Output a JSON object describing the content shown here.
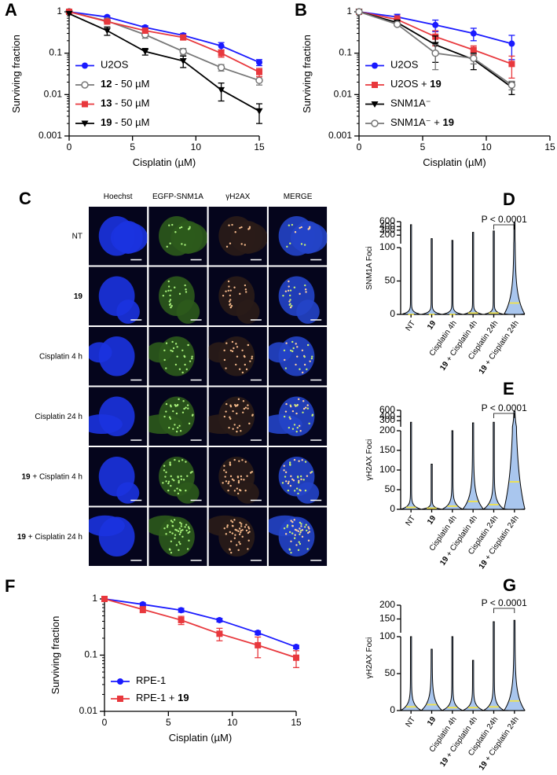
{
  "chart_data": [
    {
      "label": "A",
      "type": "line",
      "xlabel": "Cisplatin (µM)",
      "ylabel": "Surviving fraction",
      "x": [
        0,
        3,
        6,
        9,
        12,
        15
      ],
      "xlim": [
        0,
        15
      ],
      "xticks": [
        0,
        5,
        10,
        15
      ],
      "ylim": [
        0.001,
        1
      ],
      "yticks": [
        0.001,
        0.01,
        0.1,
        1
      ],
      "yscale": "log",
      "legend": "lower left",
      "series": [
        {
          "name": "U2OS",
          "color": "#1a1aff",
          "marker": "circle",
          "values": [
            1,
            0.75,
            0.42,
            0.27,
            0.15,
            0.06
          ],
          "errors": [
            0,
            0.05,
            0.04,
            0.03,
            0.03,
            0.01
          ]
        },
        {
          "name": "12 - 50 µM",
          "color": "#777777",
          "marker": "open-circle",
          "values": [
            1,
            0.6,
            0.28,
            0.11,
            0.045,
            0.022
          ],
          "errors": [
            0,
            0.05,
            0.05,
            0.02,
            0.008,
            0.005
          ]
        },
        {
          "name": "13 - 50 µM",
          "color": "#e8383d",
          "marker": "square",
          "values": [
            1,
            0.58,
            0.35,
            0.24,
            0.1,
            0.035
          ],
          "errors": [
            0,
            0.05,
            0.04,
            0.03,
            0.02,
            0.008
          ]
        },
        {
          "name": "19 - 50 µM",
          "color": "#000000",
          "marker": "triangle-down",
          "values": [
            0.9,
            0.35,
            0.11,
            0.065,
            0.013,
            0.004
          ],
          "errors": [
            0,
            0.08,
            0.02,
            0.02,
            0.006,
            0.002
          ]
        }
      ]
    },
    {
      "label": "B",
      "type": "line",
      "xlabel": "Cisplatin (µM)",
      "ylabel": "Surviving fraction",
      "x": [
        0,
        3,
        6,
        9,
        12
      ],
      "xlim": [
        0,
        15
      ],
      "xticks": [
        0,
        5,
        10,
        15
      ],
      "ylim": [
        0.001,
        1
      ],
      "yticks": [
        0.001,
        0.01,
        0.1,
        1
      ],
      "yscale": "log",
      "legend": "lower left",
      "series": [
        {
          "name": "U2OS",
          "color": "#1a1aff",
          "marker": "circle",
          "values": [
            1,
            0.75,
            0.48,
            0.3,
            0.17
          ],
          "errors": [
            0,
            0.12,
            0.15,
            0.1,
            0.1
          ]
        },
        {
          "name": "U2OS + 19",
          "color": "#e8383d",
          "marker": "square",
          "values": [
            1,
            0.65,
            0.25,
            0.12,
            0.055
          ],
          "errors": [
            0,
            0.15,
            0.1,
            0.03,
            0.03
          ]
        },
        {
          "name": "SNM1A⁻",
          "color": "#000000",
          "marker": "triangle-down",
          "values": [
            1,
            0.55,
            0.16,
            0.07,
            0.015
          ],
          "errors": [
            0,
            0.08,
            0.1,
            0.03,
            0.005
          ]
        },
        {
          "name": "SNM1A⁻ + 19",
          "color": "#777777",
          "marker": "open-circle",
          "values": [
            1,
            0.5,
            0.1,
            0.075,
            0.017
          ],
          "errors": [
            0,
            0.05,
            0.06,
            0.02,
            0.004
          ]
        }
      ]
    },
    {
      "label": "C",
      "type": "image",
      "columns": [
        "Hoechst",
        "EGFP-SNM1A",
        "γH2AX",
        "MERGE"
      ],
      "rows": [
        "NT",
        "19",
        "Cisplatin 4 h",
        "Cisplatin 24 h",
        "19 + Cisplatin 4 h",
        "19 + Cisplatin 24 h"
      ]
    },
    {
      "label": "D",
      "type": "violin",
      "ylabel": "SNM1A Foci",
      "categories": [
        "NT",
        "19",
        "Cisplatin 4h",
        "19 + Cisplatin 4h",
        "Cisplatin 24h",
        "19 + Cisplatin 24h"
      ],
      "medians": [
        0,
        0,
        0,
        2,
        2,
        17
      ],
      "maxima": [
        470,
        150,
        130,
        250,
        280,
        560
      ],
      "color": "#a9c6ee",
      "median_color": "#f2e34a",
      "ylim": [
        0,
        600
      ],
      "ybreak": 100,
      "upper_scale": "log",
      "yticks": [
        0,
        50,
        100,
        200,
        300,
        400,
        600
      ],
      "annotation": "P < 0.0001"
    },
    {
      "label": "E",
      "type": "violin",
      "ylabel": "γH2AX Foci",
      "categories": [
        "NT",
        "19",
        "Cisplatin 4h",
        "19 + Cisplatin 4h",
        "Cisplatin 24h",
        "19 + Cisplatin 24h"
      ],
      "medians": [
        5,
        3,
        8,
        20,
        12,
        70
      ],
      "maxima": [
        270,
        115,
        200,
        260,
        270,
        560
      ],
      "color": "#a9c6ee",
      "median_color": "#f2e34a",
      "ylim": [
        0,
        600
      ],
      "ybreak": 200,
      "upper_scale": "log",
      "yticks": [
        0,
        50,
        100,
        150,
        200,
        300,
        400,
        600
      ],
      "annotation": "P < 0.0001"
    },
    {
      "label": "F",
      "type": "line",
      "xlabel": "Cisplatin (µM)",
      "ylabel": "Surviving fraction",
      "x": [
        0,
        3,
        6,
        9,
        12,
        15
      ],
      "xlim": [
        0,
        15
      ],
      "xticks": [
        0,
        5,
        10,
        15
      ],
      "ylim": [
        0.01,
        1
      ],
      "yticks": [
        0.01,
        0.1,
        1
      ],
      "yscale": "log",
      "legend": "lower left",
      "series": [
        {
          "name": "RPE-1",
          "color": "#1a1aff",
          "marker": "circle",
          "values": [
            1,
            0.8,
            0.63,
            0.42,
            0.25,
            0.14
          ],
          "errors": [
            0,
            0.05,
            0.05,
            0.03,
            0.02,
            0.01
          ]
        },
        {
          "name": "RPE-1 + 19",
          "color": "#e8383d",
          "marker": "square",
          "values": [
            1,
            0.65,
            0.42,
            0.24,
            0.15,
            0.09
          ],
          "errors": [
            0,
            0.08,
            0.07,
            0.06,
            0.06,
            0.03
          ]
        }
      ]
    },
    {
      "label": "G",
      "type": "violin",
      "ylabel": "γH2AX Foci",
      "categories": [
        "NT",
        "19",
        "Cisplatin 4h",
        "19 + Cisplatin 4h",
        "Cisplatin 24h",
        "19 + Cisplatin 24h"
      ],
      "medians": [
        5,
        8,
        4,
        4,
        5,
        13
      ],
      "maxima": [
        100,
        83,
        100,
        68,
        140,
        145
      ],
      "color": "#a9c6ee",
      "median_color": "#f2e34a",
      "ylim": [
        0,
        200
      ],
      "ybreak": 100,
      "upper_scale": "linear",
      "yticks": [
        0,
        50,
        100,
        150,
        200
      ],
      "annotation": "P < 0.0001"
    }
  ]
}
